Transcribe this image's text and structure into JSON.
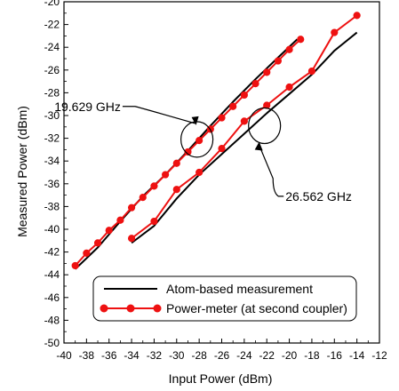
{
  "chart_data": {
    "type": "line",
    "xlabel": "Input Power (dBm)",
    "ylabel": "Measured Power (dBm)",
    "xlim": [
      -40,
      -12
    ],
    "ylim": [
      -50,
      -20
    ],
    "xticks": [
      -40,
      -38,
      -36,
      -34,
      -32,
      -30,
      -28,
      -26,
      -24,
      -22,
      -20,
      -18,
      -16,
      -14,
      -12
    ],
    "yticks": [
      -50,
      -48,
      -46,
      -44,
      -42,
      -40,
      -38,
      -36,
      -34,
      -32,
      -30,
      -28,
      -26,
      -24,
      -22,
      -20
    ],
    "grid": false,
    "legend_position": "bottom-right",
    "series": [
      {
        "name": "Atom-based measurement",
        "color": "#000000",
        "style": "line",
        "segments": [
          {
            "x": [
              -39,
              -37,
              -35,
              -33,
              -31,
              -29,
              -27,
              -25,
              -23,
              -21,
              -19.3
            ],
            "y": [
              -43.5,
              -41.6,
              -39.3,
              -37.1,
              -35.2,
              -33.1,
              -30.9,
              -28.8,
              -26.8,
              -24.9,
              -23.3
            ]
          },
          {
            "x": [
              -34,
              -32,
              -30,
              -28,
              -26,
              -24,
              -22,
              -20,
              -18,
              -16,
              -14
            ],
            "y": [
              -41.2,
              -39.7,
              -37.3,
              -35.2,
              -33.4,
              -31.6,
              -29.8,
              -28.1,
              -26.4,
              -24.3,
              -22.7
            ]
          }
        ]
      },
      {
        "name": "Power-meter (at second coupler)",
        "color": "#ee1111",
        "style": "line-marker",
        "segments": [
          {
            "x": [
              -39,
              -38,
              -37,
              -36,
              -35,
              -34,
              -33,
              -32,
              -31,
              -30,
              -29,
              -28,
              -27,
              -26,
              -25,
              -24,
              -23,
              -22,
              -21,
              -20,
              -19
            ],
            "y": [
              -43.2,
              -42.1,
              -41.2,
              -40.1,
              -39.2,
              -38.1,
              -37.2,
              -36.2,
              -35.2,
              -34.2,
              -33.2,
              -32.2,
              -31.2,
              -30.2,
              -29.2,
              -28.2,
              -27.2,
              -26.2,
              -25.2,
              -24.2,
              -23.3
            ]
          },
          {
            "x": [
              -34,
              -32,
              -30,
              -28,
              -26,
              -24,
              -22,
              -20,
              -18,
              -16,
              -14
            ],
            "y": [
              -40.8,
              -39.3,
              -36.5,
              -35,
              -32.9,
              -30.5,
              -29.1,
              -27.5,
              -26.1,
              -22.7,
              -21.2
            ]
          }
        ]
      }
    ],
    "annotations": [
      {
        "text": "19.629 GHz",
        "circle_center": [
          -28.2,
          -32.1
        ],
        "label_anchor": [
          -34.8,
          -29.2
        ]
      },
      {
        "text": "26.562 GHz",
        "circle_center": [
          -22.2,
          -30.9
        ],
        "label_anchor": [
          -20.5,
          -37.1
        ]
      }
    ]
  }
}
